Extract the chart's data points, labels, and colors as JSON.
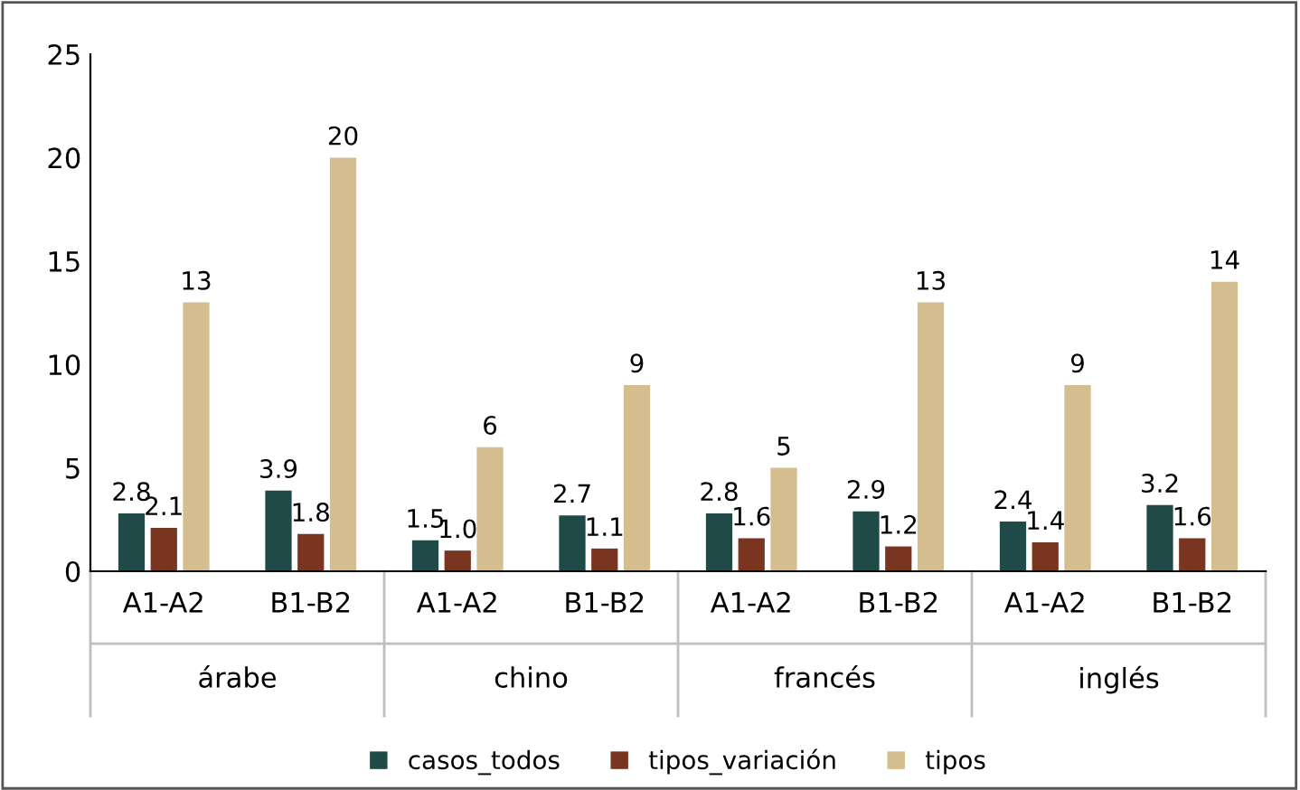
{
  "chart_data": {
    "type": "bar",
    "categories": [
      "A1-A2",
      "B1-B2",
      "A1-A2",
      "B1-B2",
      "A1-A2",
      "B1-B2",
      "A1-A2",
      "B1-B2"
    ],
    "annotations": [
      "árabe",
      "chino",
      "francés",
      "inglés"
    ],
    "series": [
      {
        "name": "casos_todos",
        "color": "#1f4a48",
        "values": [
          2.8,
          3.9,
          1.5,
          2.7,
          2.8,
          2.9,
          2.4,
          3.2
        ],
        "value_labels": [
          "2.8",
          "3.9",
          "1.5",
          "2.7",
          "2.8",
          "2.9",
          "2.4",
          "3.2"
        ]
      },
      {
        "name": "tipos_variación",
        "color": "#7a3520",
        "values": [
          2.1,
          1.8,
          1.0,
          1.1,
          1.6,
          1.2,
          1.4,
          1.6
        ],
        "value_labels": [
          "2.1",
          "1.8",
          "1.0",
          "1.1",
          "1.6",
          "1.2",
          "1.4",
          "1.6"
        ]
      },
      {
        "name": "tipos",
        "color": "#d4bd8e",
        "values": [
          13,
          20,
          6,
          9,
          5,
          13,
          9,
          14
        ],
        "value_labels": [
          "13",
          "20",
          "6",
          "9",
          "5",
          "13",
          "9",
          "14"
        ]
      }
    ],
    "ylim": [
      0,
      25
    ],
    "yticks": [
      0,
      5,
      10,
      15,
      20,
      25
    ],
    "grid": false,
    "legend": "bottom"
  }
}
